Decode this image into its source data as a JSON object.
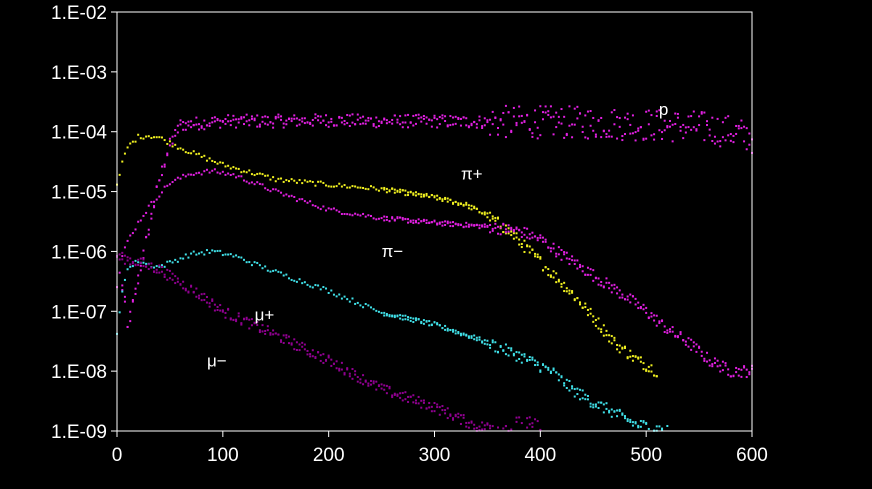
{
  "chart_data": {
    "type": "scatter",
    "title": "",
    "xlabel": "",
    "ylabel": "",
    "xlim": [
      0,
      600
    ],
    "ylim": [
      1e-09,
      0.01
    ],
    "yscale": "log",
    "grid": false,
    "legend": "none",
    "x_ticks": [
      "0",
      "100",
      "200",
      "300",
      "400",
      "500",
      "600"
    ],
    "y_ticks": [
      "1.E-02",
      "1.E-03",
      "1.E-04",
      "1.E-05",
      "1.E-06",
      "1.E-07",
      "1.E-08",
      "1.E-09"
    ],
    "series": [
      {
        "name": "p",
        "color": "#e020e0",
        "points": [
          [
            5,
            2.5e-07
          ],
          [
            8,
            1.2e-07
          ],
          [
            10,
            5e-08
          ],
          [
            40,
            1.6e-05
          ],
          [
            50,
            6e-05
          ],
          [
            60,
            0.00013
          ],
          [
            80,
            0.00014
          ],
          [
            100,
            0.00015
          ],
          [
            150,
            0.00015
          ],
          [
            200,
            0.000155
          ],
          [
            250,
            0.00015
          ],
          [
            300,
            0.00015
          ],
          [
            350,
            0.000145
          ],
          [
            400,
            0.000145
          ],
          [
            450,
            0.00014
          ],
          [
            500,
            0.00013
          ],
          [
            550,
            0.00012
          ],
          [
            580,
            0.0001
          ],
          [
            600,
            8e-05
          ]
        ],
        "label_position": [
          512,
          0.00019
        ]
      },
      {
        "name": "π+",
        "color": "#f0f020",
        "points": [
          [
            0,
            1.2e-05
          ],
          [
            5,
            3e-05
          ],
          [
            10,
            5.5e-05
          ],
          [
            20,
            8.2e-05
          ],
          [
            30,
            8.6e-05
          ],
          [
            40,
            8e-05
          ],
          [
            50,
            6.5e-05
          ],
          [
            70,
            4.5e-05
          ],
          [
            100,
            2.8e-05
          ],
          [
            150,
            1.6e-05
          ],
          [
            200,
            1.3e-05
          ],
          [
            250,
            1.1e-05
          ],
          [
            300,
            8e-06
          ],
          [
            330,
            6e-06
          ],
          [
            350,
            4e-06
          ],
          [
            370,
            2.2e-06
          ],
          [
            390,
            1e-06
          ],
          [
            410,
            4.5e-07
          ],
          [
            430,
            2e-07
          ],
          [
            450,
            8e-08
          ],
          [
            470,
            3e-08
          ],
          [
            490,
            1.6e-08
          ],
          [
            510,
            1e-08
          ]
        ],
        "label_position": [
          325,
          1.6e-05
        ]
      },
      {
        "name": "π−",
        "color": "#e020e0",
        "points": [
          [
            0,
            2.5e-07
          ],
          [
            5,
            8e-07
          ],
          [
            10,
            1.5e-06
          ],
          [
            20,
            3e-06
          ],
          [
            30,
            5.5e-06
          ],
          [
            40,
            9e-06
          ],
          [
            50,
            1.4e-05
          ],
          [
            70,
            2e-05
          ],
          [
            90,
            2.2e-05
          ],
          [
            110,
            1.9e-05
          ],
          [
            150,
            1e-05
          ],
          [
            200,
            5e-06
          ],
          [
            250,
            3.6e-06
          ],
          [
            300,
            3e-06
          ],
          [
            350,
            2.6e-06
          ],
          [
            380,
            2.2e-06
          ],
          [
            400,
            1.6e-06
          ],
          [
            420,
            9e-07
          ],
          [
            450,
            4e-07
          ],
          [
            480,
            1.8e-07
          ],
          [
            500,
            1e-07
          ],
          [
            520,
            5e-08
          ],
          [
            540,
            3e-08
          ],
          [
            560,
            1.5e-08
          ],
          [
            580,
            1e-08
          ],
          [
            600,
            1e-08
          ]
        ],
        "label_position": [
          250,
          8e-07
        ]
      },
      {
        "name": "μ+",
        "color": "#40e0e8",
        "points": [
          [
            0,
            4e-08
          ],
          [
            3,
            1.2e-07
          ],
          [
            6,
            3e-07
          ],
          [
            10,
            5e-07
          ],
          [
            20,
            7e-07
          ],
          [
            30,
            6e-07
          ],
          [
            40,
            5.5e-07
          ],
          [
            50,
            6.5e-07
          ],
          [
            70,
            9e-07
          ],
          [
            90,
            1e-06
          ],
          [
            110,
            8.5e-07
          ],
          [
            150,
            4.5e-07
          ],
          [
            200,
            2.2e-07
          ],
          [
            250,
            9.5e-08
          ],
          [
            300,
            6e-08
          ],
          [
            340,
            3.5e-08
          ],
          [
            380,
            1.8e-08
          ],
          [
            410,
            1e-08
          ],
          [
            430,
            5e-09
          ],
          [
            450,
            3e-09
          ],
          [
            470,
            2e-09
          ],
          [
            490,
            1.3e-09
          ],
          [
            520,
            1e-09
          ]
        ],
        "label_position": [
          130,
          7e-08
        ]
      },
      {
        "name": "μ−",
        "color": "#900090",
        "points": [
          [
            0,
            8e-07
          ],
          [
            10,
            7.5e-07
          ],
          [
            20,
            6.5e-07
          ],
          [
            40,
            5e-07
          ],
          [
            60,
            3e-07
          ],
          [
            80,
            1.8e-07
          ],
          [
            100,
            1e-07
          ],
          [
            150,
            4e-08
          ],
          [
            200,
            1.5e-08
          ],
          [
            250,
            5e-09
          ],
          [
            300,
            2.5e-09
          ],
          [
            340,
            1.2e-09
          ],
          [
            400,
            1e-09
          ]
        ],
        "label_position": [
          85,
          1.2e-08
        ]
      }
    ]
  }
}
